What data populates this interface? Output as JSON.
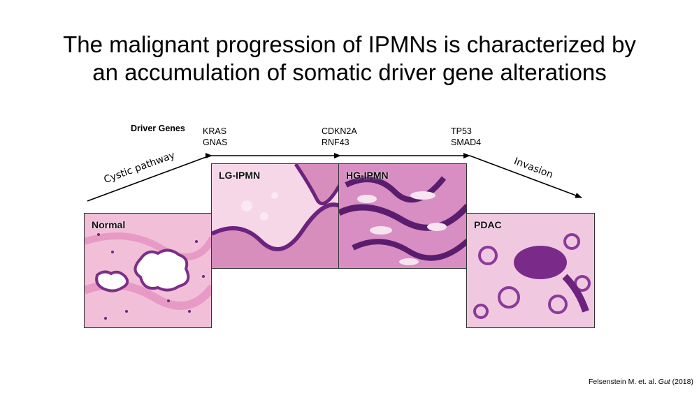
{
  "title": {
    "line1": "The malignant progression of IPMNs is characterized by",
    "line2": "an accumulation of somatic driver gene alterations"
  },
  "driver_genes_label": "Driver Genes",
  "genes": {
    "g1": [
      "KRAS",
      "GNAS"
    ],
    "g2": [
      "CDKN2A",
      "RNF43"
    ],
    "g3": [
      "TP53",
      "SMAD4"
    ]
  },
  "arrows": {
    "left_label": "Cystic pathway",
    "right_label": "Invasion"
  },
  "panels": {
    "normal": "Normal",
    "lg": "LG-IPMN",
    "hg": "HG-IPMN",
    "pdac": "PDAC"
  },
  "citation": {
    "authors": "Felsenstein M. et. al. ",
    "journal": "Gut",
    "year": " (2018)"
  },
  "colors": {
    "tissue_pink": "#f2b9d6",
    "stroma_purple": "#c46aa8",
    "nuclei_dark": "#5a1d6e"
  }
}
